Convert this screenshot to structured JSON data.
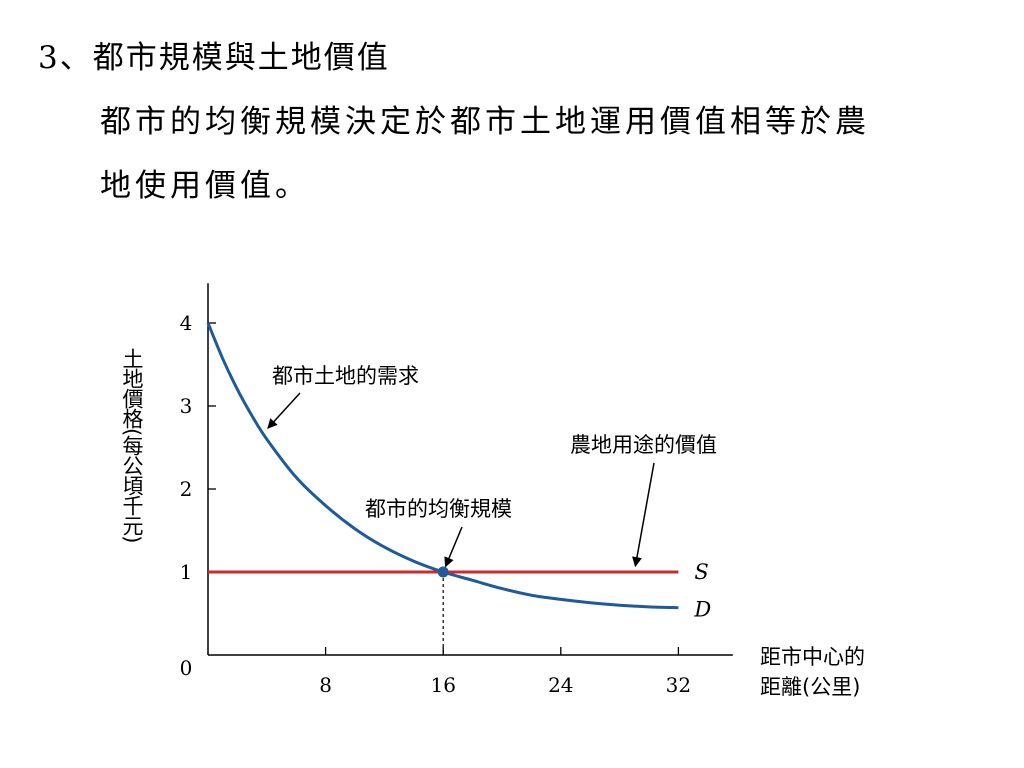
{
  "heading": "3、都市規模與土地價值",
  "paragraph": {
    "line1": "都市的均衡規模決定於都市土地運用價值相等於農",
    "line2": "地使用價值。"
  },
  "colors": {
    "demand_curve": "#1f5a9c",
    "supply_line": "#cc2b2b",
    "axis": "#000000",
    "equilibrium_point": "#1f5a9c"
  },
  "chart_data": {
    "type": "line",
    "title": "",
    "xlabel": "距市中心的距離(公里)",
    "ylabel": "土地價格(每公頃千元)",
    "xlim": [
      0,
      34
    ],
    "ylim": [
      0,
      4.6
    ],
    "origin_label": "0",
    "x_ticks": [
      8,
      16,
      24,
      32
    ],
    "y_ticks": [
      1,
      2,
      3,
      4
    ],
    "grid": false,
    "series": [
      {
        "name": "D",
        "label": "D",
        "color": "#1f5a9c",
        "x": [
          0,
          1,
          2,
          3,
          4,
          6,
          8,
          10,
          12,
          14,
          16,
          18,
          20,
          22,
          24,
          26,
          28,
          30,
          32
        ],
        "y": [
          4.0,
          3.57,
          3.2,
          2.88,
          2.6,
          2.14,
          1.8,
          1.52,
          1.3,
          1.13,
          1.0,
          0.9,
          0.8,
          0.72,
          0.67,
          0.63,
          0.6,
          0.58,
          0.57
        ]
      },
      {
        "name": "S",
        "label": "S",
        "color": "#cc2b2b",
        "x": [
          0,
          32
        ],
        "y": [
          1,
          1
        ]
      }
    ],
    "equilibrium": {
      "x": 16,
      "y": 1
    },
    "annotations": [
      {
        "text": "都市土地的需求",
        "target_x": 3.8,
        "target_y": 2.68
      },
      {
        "text": "都市的均衡規模",
        "target_x": 16,
        "target_y": 1
      },
      {
        "text": "農地用途的價值",
        "target_x": 29,
        "target_y": 1
      }
    ]
  }
}
